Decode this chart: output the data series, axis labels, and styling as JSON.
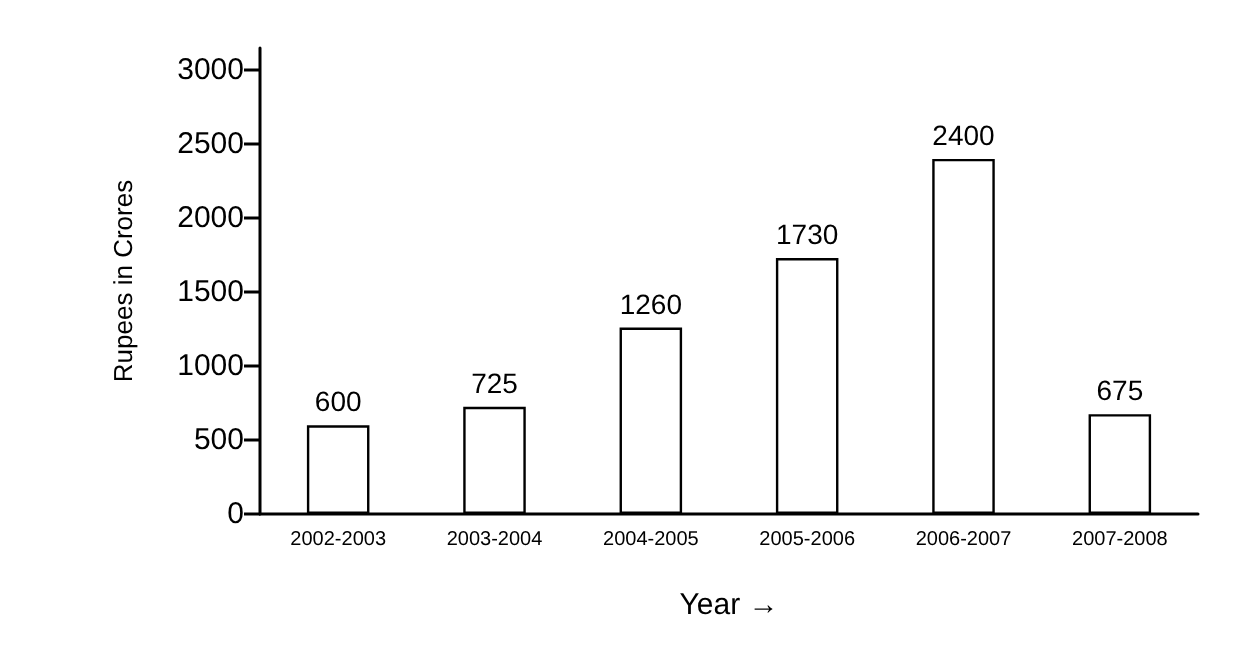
{
  "chart_data": {
    "type": "bar",
    "xlabel": "Year →",
    "ylabel": "Rupees in Crores",
    "categories": [
      "2002-2003",
      "2003-2004",
      "2004-2005",
      "2005-2006",
      "2006-2007",
      "2007-2008"
    ],
    "values": [
      600,
      725,
      1260,
      1730,
      2400,
      675
    ],
    "color": "#ffffff",
    "data_labels": true,
    "grid": false,
    "ylim": [
      0,
      3150
    ],
    "yticks": [
      0,
      500,
      1000,
      1500,
      2000,
      2500,
      3000
    ]
  }
}
